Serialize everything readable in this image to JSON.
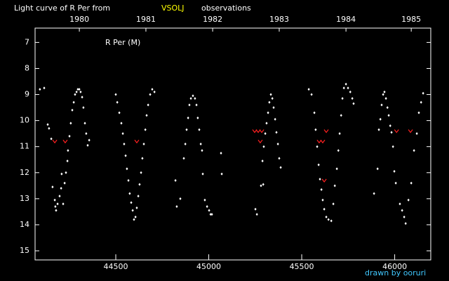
{
  "chart_data": {
    "type": "scatter",
    "title": "Light curve of R Per from",
    "title_source": "VSOLJ",
    "title_suffix": "observations",
    "credit": "drawn by ooruri",
    "xlim": [
      44066,
      46194
    ],
    "xticks": [
      44500,
      45000,
      45500,
      46000
    ],
    "x2lim": [
      44066,
      46194
    ],
    "x2ticks": [
      {
        "value": 44304,
        "label": "1980"
      },
      {
        "value": 44662,
        "label": "1981"
      },
      {
        "value": 45021,
        "label": "1982"
      },
      {
        "value": 45379,
        "label": "1983"
      },
      {
        "value": 45738,
        "label": "1984"
      },
      {
        "value": 46089,
        "label": "1985"
      }
    ],
    "ylim": [
      15.35,
      6.45
    ],
    "yticks": [
      7,
      8,
      9,
      10,
      11,
      12,
      13,
      14,
      15
    ],
    "series": [
      {
        "name": "R Per (M)",
        "color": "#ffffff",
        "x": [
          44092,
          44115,
          44134,
          44141,
          44153,
          44160,
          44172,
          44175,
          44179,
          44187,
          44198,
          44206,
          44209,
          44217,
          44225,
          44232,
          44240,
          44243,
          44251,
          44258,
          44266,
          44274,
          44281,
          44289,
          44296,
          44304,
          44311,
          44319,
          44326,
          44334,
          44341,
          44349,
          44357,
          44500,
          44508,
          44519,
          44530,
          44538,
          44545,
          44553,
          44560,
          44568,
          44575,
          44583,
          44591,
          44598,
          44606,
          44613,
          44621,
          44628,
          44636,
          44643,
          44651,
          44659,
          44666,
          44674,
          44685,
          44696,
          44708,
          44821,
          44828,
          44847,
          44866,
          44874,
          44881,
          44889,
          44896,
          44904,
          44915,
          44926,
          44934,
          44941,
          44949,
          44957,
          44964,
          44968,
          44979,
          44991,
          45002,
          45010,
          45017,
          45066,
          45070,
          45251,
          45259,
          45281,
          45289,
          45296,
          45304,
          45311,
          45319,
          45326,
          45334,
          45342,
          45349,
          45357,
          45364,
          45372,
          45379,
          45387,
          45293,
          45538,
          45553,
          45568,
          45575,
          45583,
          45591,
          45598,
          45606,
          45613,
          45621,
          45632,
          45644,
          45659,
          45670,
          45678,
          45689,
          45697,
          45704,
          45712,
          45719,
          45727,
          45738,
          45749,
          45761,
          45772,
          45779,
          45889,
          45908,
          45915,
          45923,
          45930,
          45938,
          45945,
          45953,
          45961,
          45968,
          45976,
          45983,
          45991,
          45998,
          46006,
          46028,
          46040,
          46051,
          46059,
          46074,
          46089,
          46104,
          46119,
          46130,
          46142,
          46153
        ],
        "values": [
          8.8,
          8.75,
          10.15,
          10.3,
          10.7,
          12.55,
          13.05,
          13.3,
          13.45,
          13.2,
          12.9,
          12.6,
          12.05,
          13.2,
          12.4,
          12,
          11.55,
          11.15,
          10.6,
          10.1,
          9.6,
          9.3,
          9,
          8.9,
          8.8,
          8.8,
          8.9,
          9.1,
          9.5,
          10.1,
          10.5,
          10.95,
          10.75,
          9,
          9.3,
          9.7,
          10.1,
          10.5,
          10.9,
          11.35,
          11.85,
          12.3,
          12.8,
          13.15,
          13.45,
          13.8,
          13.7,
          13.35,
          12.9,
          12.45,
          12,
          11.45,
          10.9,
          10.35,
          9.8,
          9.4,
          9,
          8.8,
          8.9,
          12.3,
          13.3,
          13,
          11.45,
          10.9,
          10.35,
          9.9,
          9.4,
          9.15,
          9.05,
          9.15,
          9.4,
          9.9,
          10.35,
          10.9,
          11.15,
          12.05,
          13.05,
          13.3,
          13.45,
          13.6,
          13.6,
          11.25,
          12.05,
          13.4,
          13.6,
          12.5,
          11.55,
          11,
          10.5,
          10.1,
          9.7,
          9.3,
          9,
          9.15,
          9.5,
          9.95,
          10.45,
          10.9,
          11.45,
          11.8,
          12.45,
          8.8,
          9,
          9.7,
          10.35,
          11,
          11.7,
          12.25,
          12.65,
          13.05,
          13.4,
          13.7,
          13.8,
          13.85,
          13.2,
          12.5,
          11.85,
          11.15,
          10.5,
          9.8,
          9.15,
          8.75,
          8.6,
          8.75,
          8.9,
          9.15,
          9.35,
          12.8,
          11.85,
          10.35,
          9.95,
          9.4,
          9,
          8.9,
          9.15,
          9.5,
          9.8,
          10.2,
          10.45,
          11,
          11.95,
          12.4,
          13.2,
          13.45,
          13.7,
          13.95,
          13.05,
          12.4,
          11.15,
          10.5,
          9.7,
          9.3,
          8.95
        ]
      },
      {
        "color": "#ff2020",
        "marker": "v",
        "x": [
          44172,
          44228,
          44613,
          45247,
          45266,
          45285,
          45277,
          45594,
          45613,
          45632,
          45621,
          46010,
          46085
        ],
        "values": [
          10.8,
          10.8,
          10.8,
          10.4,
          10.4,
          10.4,
          10.8,
          10.8,
          10.8,
          10.4,
          12.3,
          10.4,
          10.4
        ]
      }
    ]
  }
}
